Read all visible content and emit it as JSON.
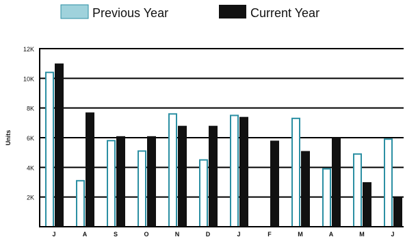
{
  "chart_data": {
    "type": "bar",
    "title": "",
    "xlabel": "",
    "ylabel": "Units",
    "ylim": [
      0,
      12000
    ],
    "yticks": [
      {
        "value": 2000,
        "label": "2K"
      },
      {
        "value": 4000,
        "label": "4K"
      },
      {
        "value": 6000,
        "label": "6K"
      },
      {
        "value": 8000,
        "label": "8K"
      },
      {
        "value": 10000,
        "label": "10K"
      },
      {
        "value": 12000,
        "label": "12K"
      }
    ],
    "categories": [
      "J",
      "A",
      "S",
      "O",
      "N",
      "D",
      "J",
      "F",
      "M",
      "A",
      "M",
      "J"
    ],
    "series": [
      {
        "name": "Previous Year",
        "values": [
          10400,
          3100,
          5800,
          5100,
          7600,
          4500,
          7500,
          null,
          7300,
          3900,
          4900,
          5900
        ]
      },
      {
        "name": "Current Year",
        "values": [
          11000,
          7700,
          6100,
          6100,
          6800,
          6800,
          7400,
          5800,
          5100,
          6000,
          3000,
          2000
        ]
      }
    ],
    "grid": true,
    "legend": "top",
    "colors": {
      "previous_fill": "#ffffff",
      "previous_stroke": "#2b8fa3",
      "current_fill": "#111111",
      "legend_previous_fill": "#9fd2dc",
      "axis": "#000000",
      "text": "#111111"
    }
  }
}
